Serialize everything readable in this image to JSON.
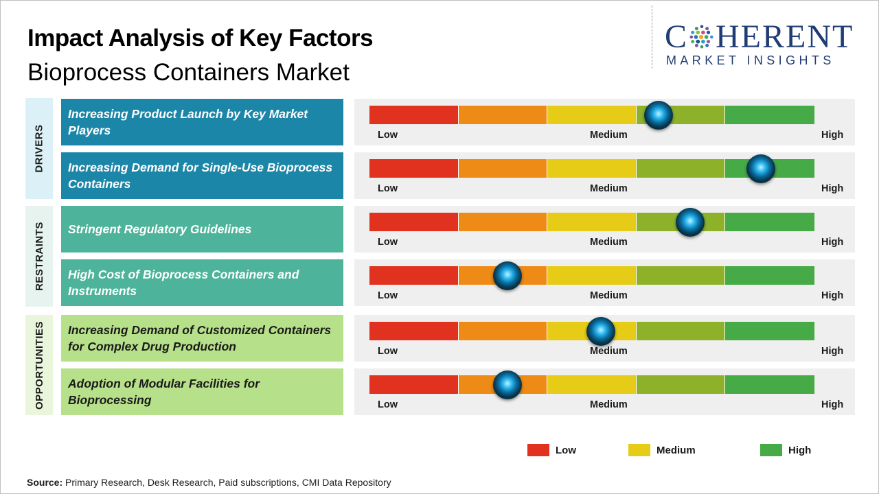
{
  "title": {
    "line1": "Impact Analysis of Key Factors",
    "line2": "Bioprocess Containers Market"
  },
  "logo": {
    "main_left": "C",
    "main_right": "HERENT",
    "sub": "MARKET INSIGHTS"
  },
  "colors": {
    "low": "#e0321e",
    "low_medium": "#ee8a16",
    "medium": "#e6cc16",
    "medium_high": "#8db22a",
    "high": "#46aa46",
    "drivers_box": "#1c86a8",
    "drivers_bg": "#dcf0f7",
    "restraints_box": "#4db39a",
    "restraints_bg": "#e6f3ef",
    "opportunities_box": "#b7e08a",
    "opportunities_bg": "#eaf6dc",
    "panel_bg": "#efefef"
  },
  "categories": [
    {
      "name": "DRIVERS"
    },
    {
      "name": "RESTRAINTS"
    },
    {
      "name": "OPPORTUNITIES"
    }
  ],
  "chart_data": {
    "type": "gauge",
    "scale_labels": [
      "Low",
      "Medium",
      "High"
    ],
    "scale_range": [
      0,
      1
    ],
    "segments": 5,
    "factors": [
      {
        "category": "DRIVERS",
        "label": "Increasing Product Launch by Key Market Players",
        "impact": 0.65
      },
      {
        "category": "DRIVERS",
        "label": "Increasing Demand for Single-Use Bioprocess Containers",
        "impact": 0.88
      },
      {
        "category": "RESTRAINTS",
        "label": "Stringent Regulatory Guidelines",
        "impact": 0.72
      },
      {
        "category": "RESTRAINTS",
        "label": "High Cost of Bioprocess Containers and Instruments",
        "impact": 0.31
      },
      {
        "category": "OPPORTUNITIES",
        "label": "Increasing Demand of Customized Containers for Complex Drug Production",
        "impact": 0.52
      },
      {
        "category": "OPPORTUNITIES",
        "label": "Adoption of Modular Facilities for Bioprocessing",
        "impact": 0.31
      }
    ]
  },
  "legend": [
    {
      "label": "Low",
      "color": "#e0321e"
    },
    {
      "label": "Medium",
      "color": "#e6cc16"
    },
    {
      "label": "High",
      "color": "#46aa46"
    }
  ],
  "source": {
    "prefix": "Source:",
    "text": " Primary Research, Desk Research, Paid subscriptions, CMI Data Repository"
  }
}
